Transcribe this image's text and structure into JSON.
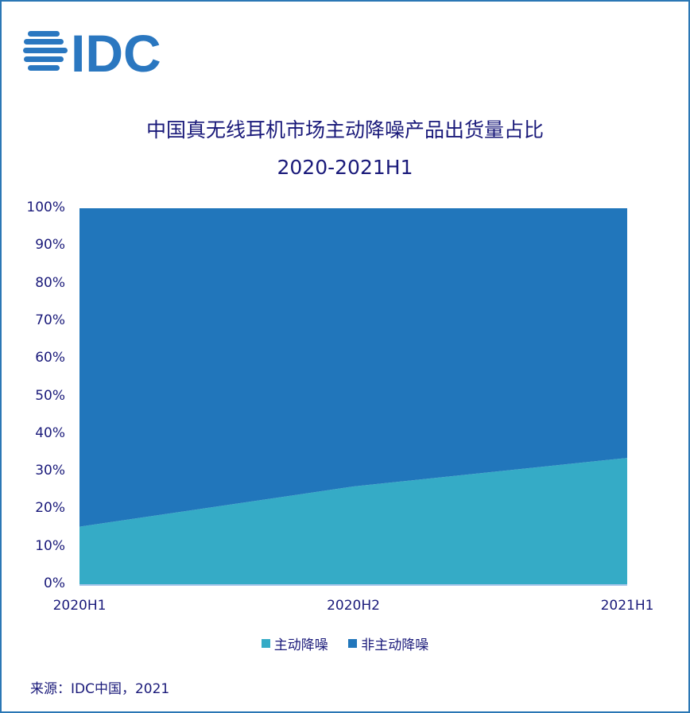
{
  "logo": "IDC",
  "title_line1": "中国真无线耳机市场主动降噪产品出货量占比",
  "title_line2": "2020-2021H1",
  "source": "来源：IDC中国，2021",
  "chart_data": {
    "type": "area",
    "stacked": "percent",
    "categories": [
      "2020H1",
      "2020H2",
      "2021H1"
    ],
    "series": [
      {
        "name": "主动降噪",
        "values": [
          15.3,
          26.0,
          33.6
        ],
        "color": "#35abc6"
      },
      {
        "name": "非主动降噪",
        "values": [
          84.7,
          74.0,
          66.4
        ],
        "color": "#2176bb"
      }
    ],
    "ylim": [
      0,
      100
    ],
    "yticks": [
      "0%",
      "10%",
      "20%",
      "30%",
      "40%",
      "50%",
      "60%",
      "70%",
      "80%",
      "90%",
      "100%"
    ],
    "legend": "bottom"
  }
}
